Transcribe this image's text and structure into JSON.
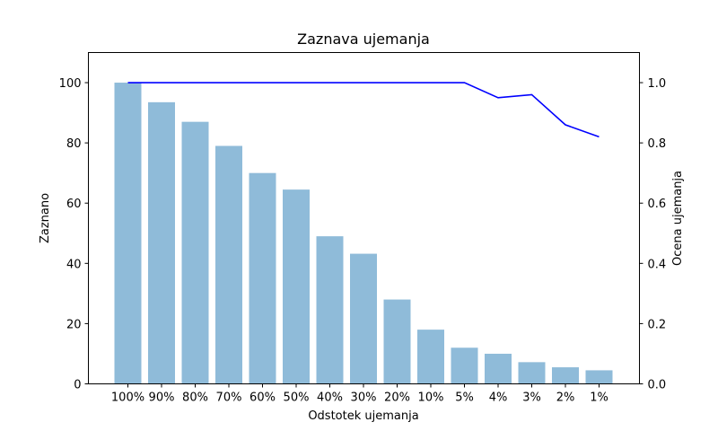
{
  "chart_data": {
    "type": "bar",
    "title": "Zaznava ujemanja",
    "xlabel": "Odstotek ujemanja",
    "ylabel": "Zaznano",
    "y2label": "Ocena ujemanja",
    "categories": [
      "100%",
      "90%",
      "80%",
      "70%",
      "60%",
      "50%",
      "40%",
      "30%",
      "20%",
      "10%",
      "5%",
      "4%",
      "3%",
      "2%",
      "1%"
    ],
    "series": [
      {
        "type": "bar",
        "axis": "left",
        "color": "#8fbbd9",
        "values": [
          100,
          93.5,
          87,
          79,
          70,
          64.5,
          49,
          43.2,
          28,
          18,
          12,
          10,
          7.2,
          5.5,
          4.5
        ]
      },
      {
        "type": "line",
        "axis": "right",
        "color": "#0000ff",
        "values": [
          1.0,
          1.0,
          1.0,
          1.0,
          1.0,
          1.0,
          1.0,
          1.0,
          1.0,
          1.0,
          1.0,
          0.95,
          0.96,
          0.86,
          0.82
        ]
      }
    ],
    "ylim": [
      0,
      110
    ],
    "y2lim": [
      0,
      1.1
    ],
    "yticks": [
      "0",
      "20",
      "40",
      "60",
      "80",
      "100"
    ],
    "y2ticks": [
      "0.0",
      "0.2",
      "0.4",
      "0.6",
      "0.8",
      "1.0"
    ],
    "grid": false,
    "legend": "none"
  }
}
